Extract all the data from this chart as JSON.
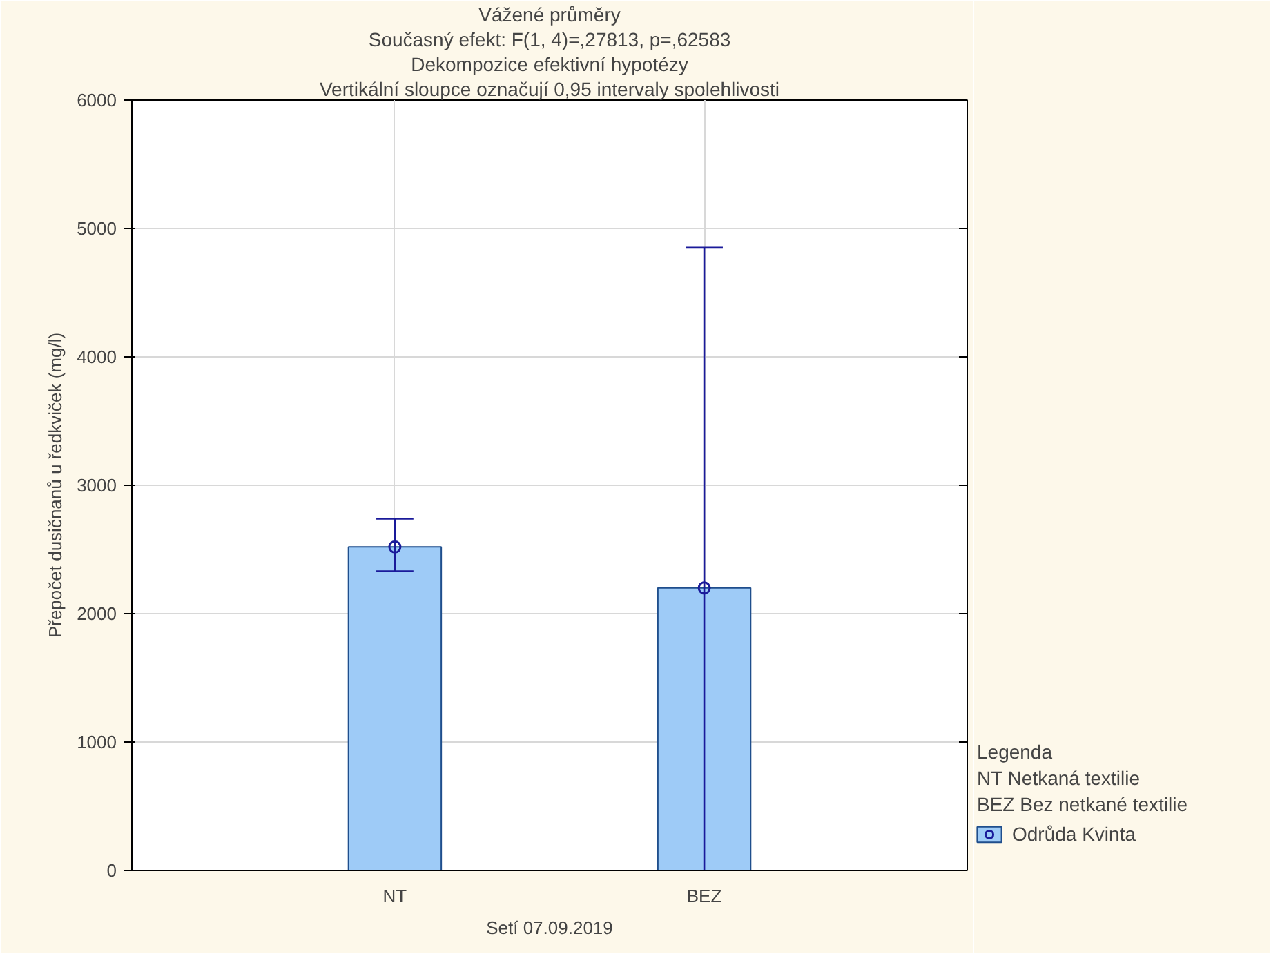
{
  "chart_data": {
    "type": "bar",
    "title": "Vážené průměry",
    "subtitle": "Současný efekt: F(1, 4)=,27813, p=,62583",
    "annotations": [
      "Dekompozice efektivní hypotézy",
      "Vertikální sloupce označují 0,95 intervaly spolehlivosti",
      "Legenda",
      "NT Netkaná textilie",
      "BEZ Bez netkané textilie"
    ],
    "xlabel": "Setí 07.09.2019",
    "ylabel": "Přepočet dusičnanů u ředkviček (mg/l)",
    "categories": [
      "NT",
      "BEZ"
    ],
    "series": [
      {
        "name": "Odrůda Kvinta",
        "color": "#9ecbf7",
        "values": [
          2520,
          2200
        ],
        "errors": [
          [
            2330,
            2740
          ],
          [
            0,
            4850
          ]
        ]
      },
      {
        "type": "scatter",
        "x": [
          "NT",
          "BEZ"
        ],
        "color": "#1a1a9a",
        "marker": "circle",
        "values": [
          2520,
          2200
        ]
      }
    ],
    "ylim": [
      0,
      6000
    ],
    "yticks": [
      0,
      1000,
      2000,
      3000,
      4000,
      5000,
      6000
    ],
    "grid": true,
    "legend": "bottom right"
  }
}
